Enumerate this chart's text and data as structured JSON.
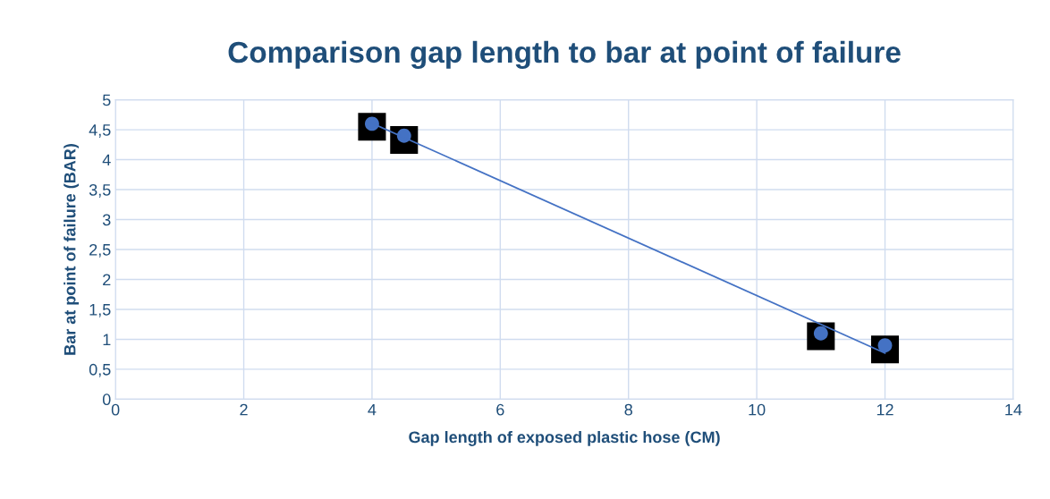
{
  "chart_data": {
    "type": "scatter",
    "title": "Comparison gap length to bar at point of failure",
    "xlabel": "Gap length of exposed plastic hose (CM)",
    "ylabel": "Bar at point of failure (BAR)",
    "series": [
      {
        "marker": "square",
        "color": "#000000",
        "x": [
          4,
          4.5,
          11,
          12
        ],
        "values": [
          4.55,
          4.33,
          1.05,
          0.83
        ]
      },
      {
        "marker": "circle",
        "color": "#4472c4",
        "x": [
          4,
          4.5,
          11,
          12
        ],
        "values": [
          4.6,
          4.4,
          1.1,
          0.9
        ]
      },
      {
        "type": "line",
        "marker": "none",
        "color": "#4472c4",
        "x": [
          4,
          12
        ],
        "values": [
          4.61,
          0.77
        ]
      }
    ],
    "xlim": [
      0,
      14
    ],
    "xticks": [
      0,
      2,
      4,
      6,
      8,
      10,
      12,
      14
    ],
    "ylim": [
      0,
      5
    ],
    "yticks": [
      0,
      {
        "value": 0.5,
        "label": "0,5"
      },
      1,
      {
        "value": 1.5,
        "label": "1,5"
      },
      2,
      {
        "value": 2.5,
        "label": "2,5"
      },
      3,
      {
        "value": 3.5,
        "label": "3,5"
      },
      4,
      {
        "value": 4.5,
        "label": "4,5"
      },
      5
    ],
    "grid": true,
    "legend": false
  }
}
